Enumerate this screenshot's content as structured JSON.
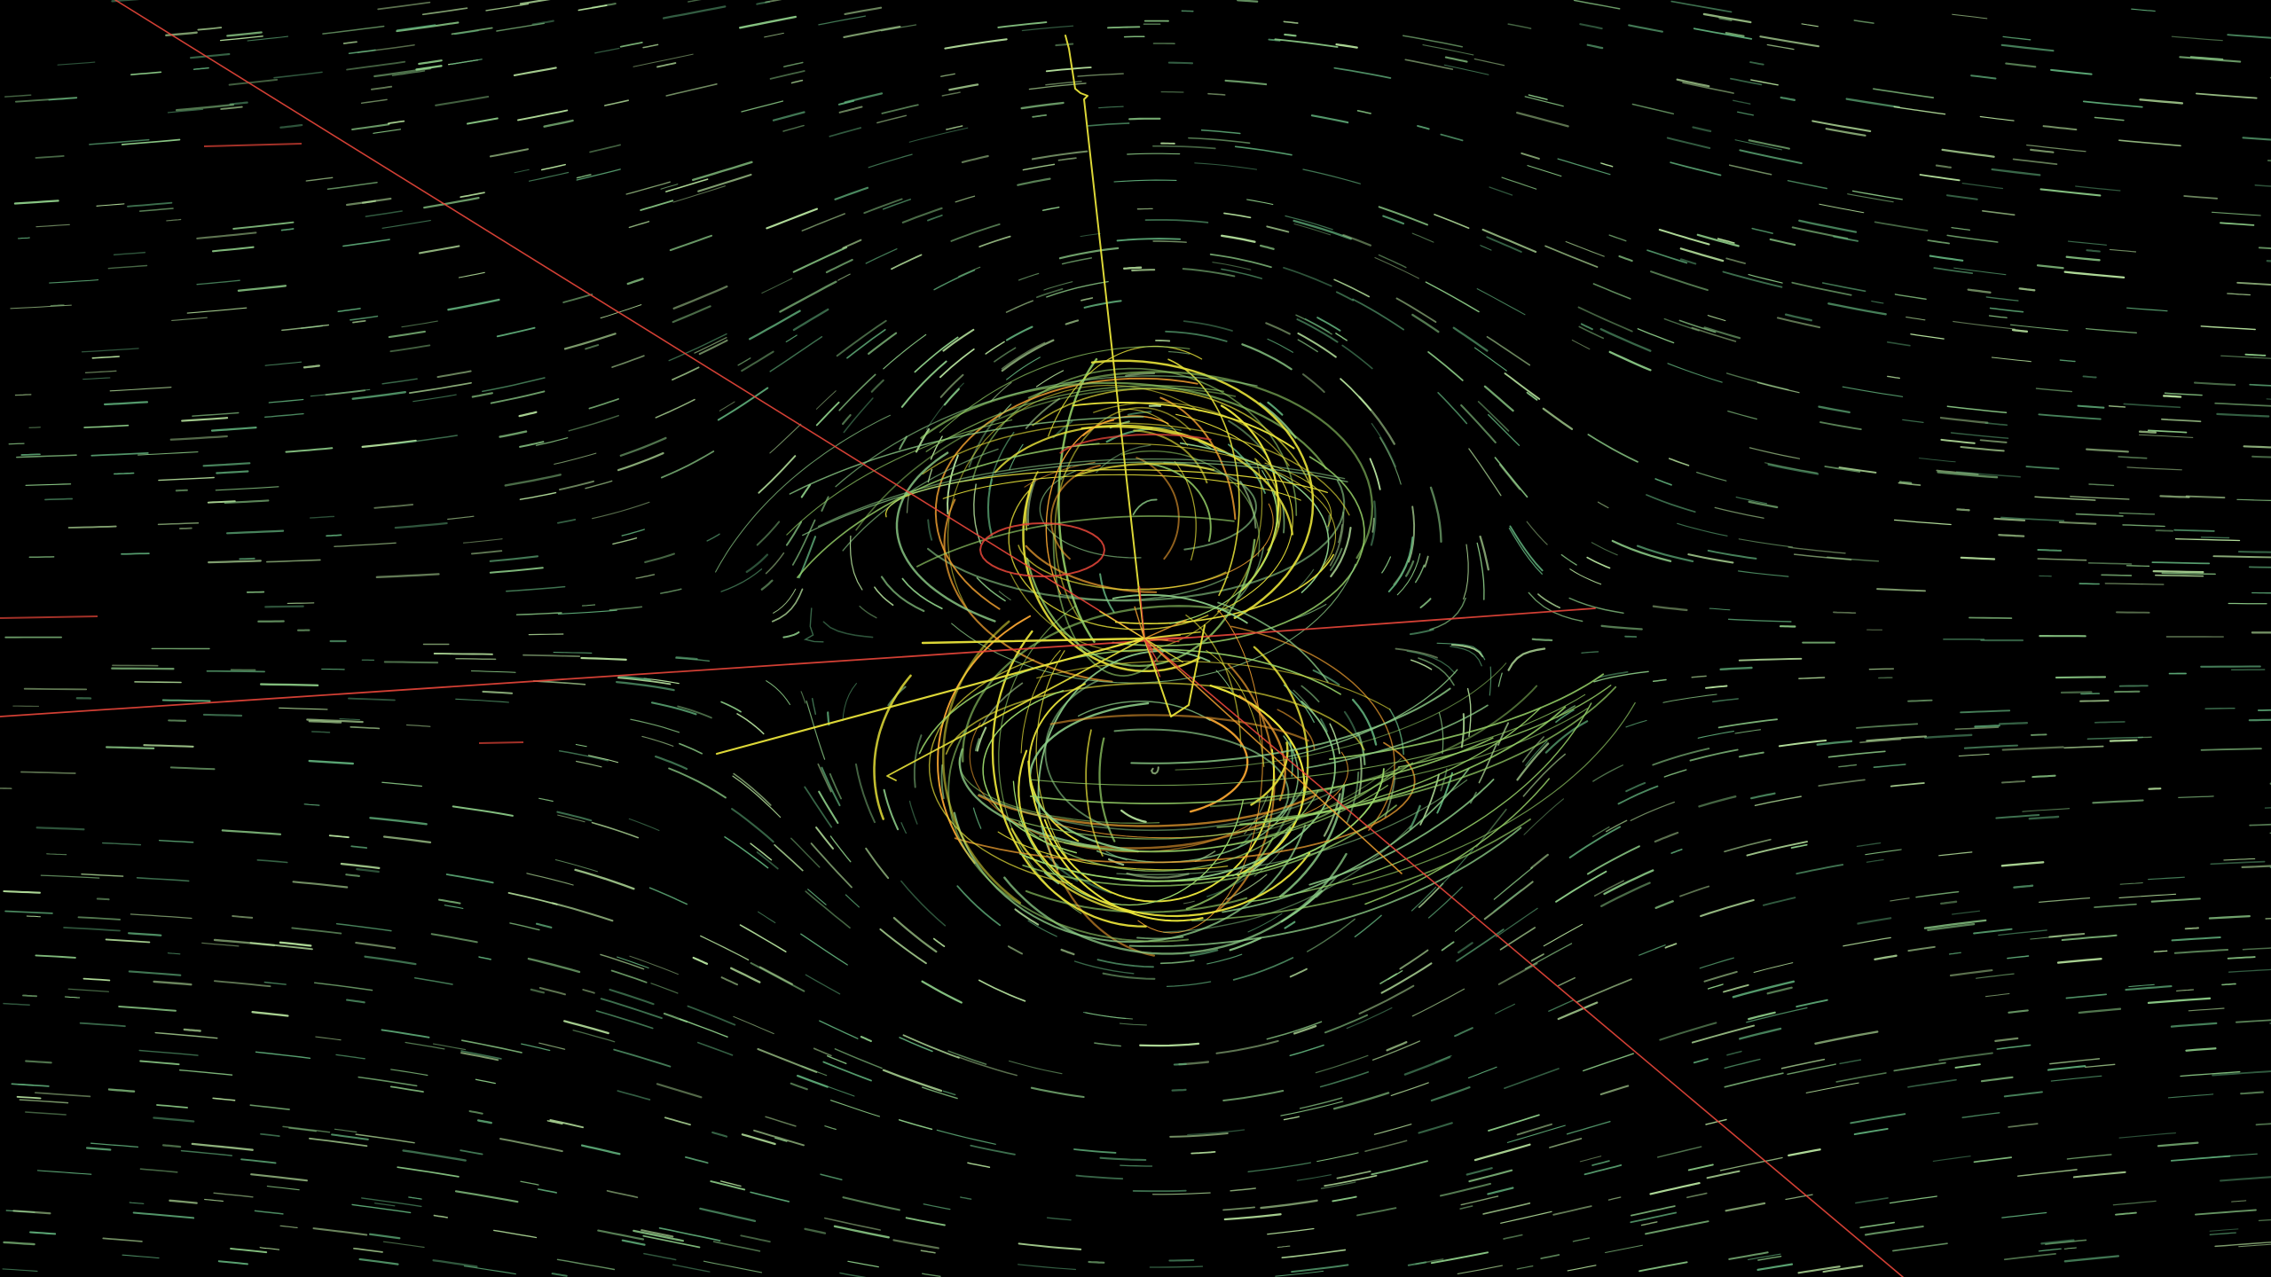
{
  "scene": {
    "kind": "flow-field particle visualization",
    "background_color": "#000000",
    "palette": {
      "flow_low": "#5fae7a",
      "flow_mid": "#8fd08a",
      "flow_bright": "#b9e6a0",
      "vortex_green": "#9ad66a",
      "vortex_yellow": "#e8e33a",
      "vortex_orange": "#f0a030",
      "accent_red": "#e8463a"
    },
    "icons": []
  }
}
